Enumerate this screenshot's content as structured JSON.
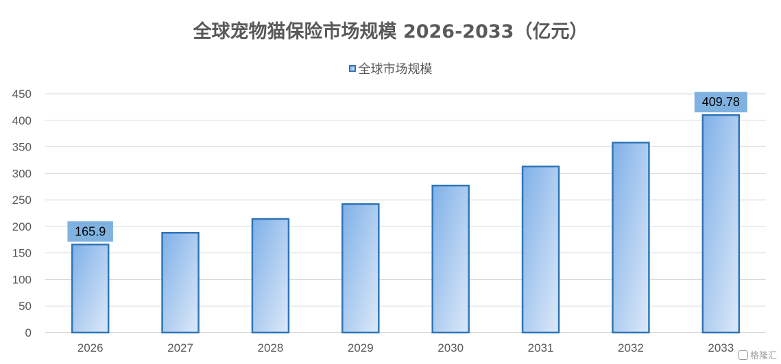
{
  "chart_data": {
    "type": "bar",
    "title": "全球宠物猫保险市场规模 2026-2033（亿元）",
    "categories": [
      "2026",
      "2027",
      "2028",
      "2029",
      "2030",
      "2031",
      "2032",
      "2033"
    ],
    "series": [
      {
        "name": "全球市场规模",
        "values": [
          165.9,
          188,
          214,
          242,
          277,
          313,
          358,
          409.78
        ],
        "data_labels": [
          "165.9",
          null,
          null,
          null,
          null,
          null,
          null,
          "409.78"
        ]
      }
    ],
    "ylim": [
      0,
      450
    ],
    "yticks": [
      "0",
      "50",
      "100",
      "150",
      "200",
      "250",
      "300",
      "350",
      "400",
      "450"
    ],
    "grid": true,
    "legend_position": "top",
    "colors": {
      "bar_border": "#2E75B6",
      "bar_fill_start": "#7FB0E8",
      "bar_fill_end": "#DDE9F8",
      "data_label_bg": "#7FB2E0",
      "grid": "#D9D9D9",
      "axis": "#BFBFBF"
    }
  },
  "watermark": {
    "text": "格隆汇",
    "icon": "logo-icon"
  }
}
